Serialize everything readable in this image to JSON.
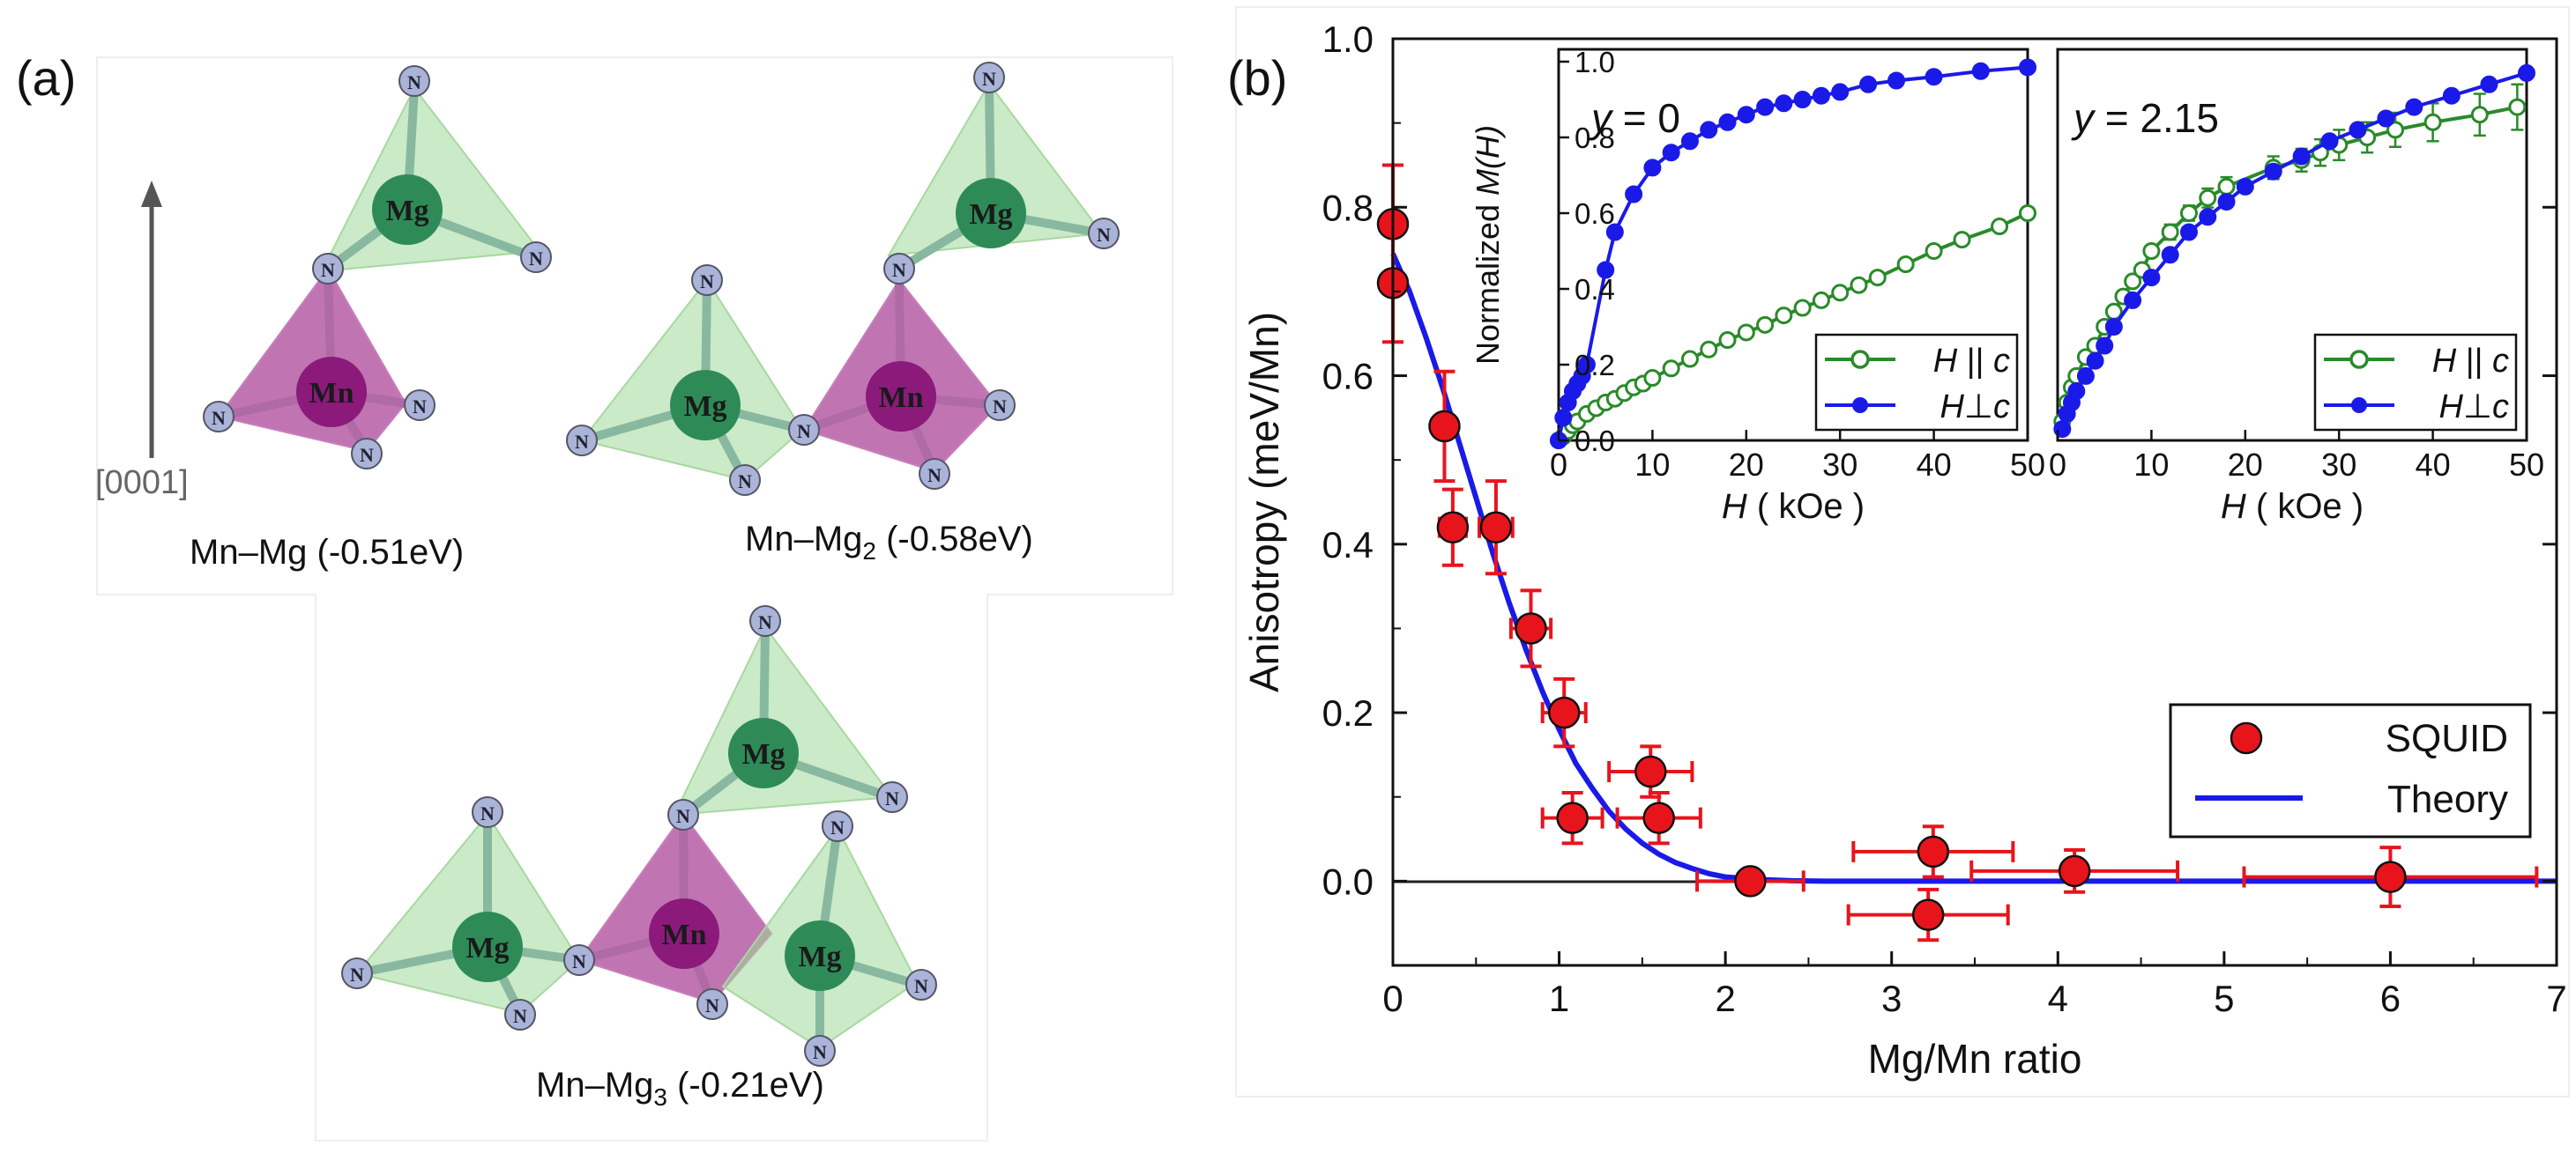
{
  "panel_a": {
    "label": "(a)",
    "axis_label": "[0001]",
    "configs": [
      {
        "name": "Mn–Mg (-0.51eV)"
      },
      {
        "name_prefix": "Mn–Mg",
        "name_sub": "2",
        "name_suffix": " (-0.58eV)"
      },
      {
        "name_prefix": "Mn–Mg",
        "name_sub": "3",
        "name_suffix": " (-0.21eV)"
      }
    ],
    "atoms": {
      "mg": "Mg",
      "mn": "Mn",
      "n": "N"
    },
    "colors": {
      "mg_tetra": "#9ed89a",
      "mn_tetra": "#b0529f",
      "mg_atom": "#2e8b57",
      "mn_atom": "#8b1a7a",
      "n_atom": "#aab4d8"
    }
  },
  "panel_b": {
    "label": "(b)"
  },
  "chart_data": [
    {
      "type": "scatter",
      "title": "",
      "xlabel": "Mg/Mn ratio",
      "ylabel": "Anisotropy (meV/Mn)",
      "xlim": [
        0,
        7
      ],
      "ylim": [
        -0.1,
        1.0
      ],
      "xticks": [
        "0",
        "1",
        "2",
        "3",
        "4",
        "5",
        "6",
        "7"
      ],
      "yticks": [
        "0.0",
        "0.2",
        "0.4",
        "0.6",
        "0.8",
        "1.0"
      ],
      "legend": {
        "placement": "lower-right",
        "entries": [
          "SQUID",
          "Theory"
        ]
      },
      "series": [
        {
          "name": "SQUID",
          "color": "#e8141c",
          "points": [
            {
              "x": 0.0,
              "y": 0.78,
              "xerr": 0.0,
              "yerr": 0.07
            },
            {
              "x": 0.0,
              "y": 0.71,
              "xerr": 0.0,
              "yerr": 0.07
            },
            {
              "x": 0.31,
              "y": 0.54,
              "xerr": 0.05,
              "yerr": 0.065
            },
            {
              "x": 0.36,
              "y": 0.42,
              "xerr": 0.08,
              "yerr": 0.045
            },
            {
              "x": 0.62,
              "y": 0.42,
              "xerr": 0.1,
              "yerr": 0.055
            },
            {
              "x": 0.83,
              "y": 0.3,
              "xerr": 0.12,
              "yerr": 0.045
            },
            {
              "x": 1.03,
              "y": 0.2,
              "xerr": 0.13,
              "yerr": 0.04
            },
            {
              "x": 1.08,
              "y": 0.075,
              "xerr": 0.18,
              "yerr": 0.03
            },
            {
              "x": 1.55,
              "y": 0.13,
              "xerr": 0.25,
              "yerr": 0.03
            },
            {
              "x": 1.6,
              "y": 0.075,
              "xerr": 0.25,
              "yerr": 0.03
            },
            {
              "x": 2.15,
              "y": 0.0,
              "xerr": 0.32,
              "yerr": 0.0
            },
            {
              "x": 3.22,
              "y": -0.04,
              "xerr": 0.48,
              "yerr": 0.03
            },
            {
              "x": 3.25,
              "y": 0.035,
              "xerr": 0.48,
              "yerr": 0.03
            },
            {
              "x": 4.1,
              "y": 0.012,
              "xerr": 0.62,
              "yerr": 0.025
            },
            {
              "x": 6.0,
              "y": 0.005,
              "xerr": 0.88,
              "yerr": 0.035
            }
          ]
        },
        {
          "name": "Theory",
          "color": "#1a1ae8",
          "line": {
            "x": [
              0,
              0.1,
              0.2,
              0.3,
              0.4,
              0.5,
              0.6,
              0.7,
              0.8,
              0.9,
              1.0,
              1.1,
              1.2,
              1.3,
              1.4,
              1.5,
              1.6,
              1.7,
              1.8,
              1.9,
              2.0,
              2.2,
              2.4,
              2.6,
              2.8,
              3.0,
              4.0,
              5.0,
              6.0,
              7.0
            ],
            "y": [
              0.745,
              0.7,
              0.645,
              0.585,
              0.52,
              0.455,
              0.39,
              0.33,
              0.275,
              0.225,
              0.18,
              0.14,
              0.11,
              0.083,
              0.062,
              0.045,
              0.032,
              0.022,
              0.015,
              0.009,
              0.005,
              0.002,
              0.0005,
              0.0,
              0.0,
              0.0,
              0.0,
              0.0,
              0.0,
              0.0
            ]
          }
        }
      ]
    },
    {
      "type": "line",
      "title": "y = 0",
      "title_prefix": "y",
      "title_suffix": " = 0",
      "xlabel_prefix": "H",
      "xlabel_suffix": " ( kOe )",
      "ylabel_prefix": "Normalized ",
      "ylabel_mid": "M(H)",
      "xlim": [
        0,
        50
      ],
      "ylim": [
        0,
        1.0
      ],
      "xticks": [
        "0",
        "10",
        "20",
        "30",
        "40",
        "50"
      ],
      "yticks": [
        "0.0",
        "0.2",
        "0.4",
        "0.6",
        "0.8",
        "1.0"
      ],
      "legend": {
        "placement": "lower-right",
        "entries": [
          {
            "prefix": "H",
            "mid": " || ",
            "suffix": "c"
          },
          {
            "prefix": "H",
            "mid": "⊥",
            "suffix": "c"
          }
        ]
      },
      "series": [
        {
          "name": "H || c",
          "color": "#2a8a2a",
          "filled": false,
          "x": [
            0,
            0.5,
            1,
            1.5,
            2,
            3,
            4,
            5,
            6,
            7,
            8,
            9,
            10,
            12,
            14,
            16,
            18,
            20,
            22,
            24,
            26,
            28,
            30,
            32,
            34,
            37,
            40,
            43,
            47,
            50
          ],
          "y": [
            0.0,
            0.01,
            0.025,
            0.04,
            0.05,
            0.07,
            0.085,
            0.1,
            0.11,
            0.125,
            0.14,
            0.15,
            0.165,
            0.19,
            0.215,
            0.24,
            0.265,
            0.285,
            0.305,
            0.33,
            0.35,
            0.37,
            0.39,
            0.41,
            0.43,
            0.465,
            0.5,
            0.53,
            0.565,
            0.6
          ]
        },
        {
          "name": "H ⊥ c",
          "color": "#1a1ae8",
          "filled": true,
          "x": [
            0,
            0.5,
            1,
            1.5,
            2,
            2.5,
            3,
            5,
            6,
            8,
            10,
            12,
            14,
            16,
            18,
            20,
            22,
            24,
            26,
            28,
            30,
            33,
            36,
            40,
            45,
            50
          ],
          "y": [
            0.0,
            0.06,
            0.1,
            0.13,
            0.15,
            0.17,
            0.2,
            0.45,
            0.55,
            0.65,
            0.72,
            0.76,
            0.79,
            0.82,
            0.84,
            0.86,
            0.88,
            0.89,
            0.9,
            0.91,
            0.92,
            0.94,
            0.95,
            0.96,
            0.975,
            0.985
          ]
        }
      ]
    },
    {
      "type": "line",
      "title": "y = 2.15",
      "title_prefix": "y",
      "title_suffix": " = 2.15",
      "xlabel_prefix": "H",
      "xlabel_suffix": " ( kOe )",
      "xlim": [
        0,
        50
      ],
      "ylim": [
        0,
        1.0
      ],
      "xticks": [
        "0",
        "10",
        "20",
        "30",
        "40",
        "50"
      ],
      "legend": {
        "placement": "lower-right",
        "entries": [
          {
            "prefix": "H",
            "mid": " || ",
            "suffix": "c"
          },
          {
            "prefix": "H",
            "mid": "⊥",
            "suffix": "c"
          }
        ]
      },
      "series": [
        {
          "name": "H || c",
          "color": "#2a8a2a",
          "filled": false,
          "errbars": true,
          "x": [
            0.5,
            1,
            1.5,
            2,
            3,
            4,
            5,
            6,
            7,
            8,
            9,
            10,
            12,
            14,
            16,
            18,
            23,
            26,
            28,
            30,
            33,
            36,
            40,
            45,
            49
          ],
          "y": [
            0.05,
            0.1,
            0.14,
            0.17,
            0.22,
            0.25,
            0.3,
            0.34,
            0.38,
            0.42,
            0.45,
            0.5,
            0.55,
            0.6,
            0.64,
            0.67,
            0.72,
            0.74,
            0.76,
            0.78,
            0.8,
            0.82,
            0.84,
            0.86,
            0.88
          ],
          "yerr": [
            0,
            0,
            0,
            0,
            0,
            0,
            0,
            0,
            0,
            0,
            0,
            0,
            0.02,
            0.02,
            0.025,
            0.025,
            0.03,
            0.03,
            0.035,
            0.04,
            0.04,
            0.045,
            0.05,
            0.055,
            0.06
          ]
        },
        {
          "name": "H ⊥ c",
          "color": "#1a1ae8",
          "filled": true,
          "x": [
            0.5,
            1,
            1.5,
            2,
            3,
            4,
            5,
            6,
            8,
            10,
            12,
            14,
            16,
            18,
            20,
            23,
            26,
            29,
            32,
            35,
            38,
            42,
            46,
            50
          ],
          "y": [
            0.03,
            0.07,
            0.1,
            0.13,
            0.17,
            0.21,
            0.25,
            0.3,
            0.37,
            0.43,
            0.49,
            0.55,
            0.59,
            0.63,
            0.67,
            0.71,
            0.75,
            0.79,
            0.82,
            0.85,
            0.88,
            0.91,
            0.94,
            0.97
          ]
        }
      ]
    }
  ]
}
